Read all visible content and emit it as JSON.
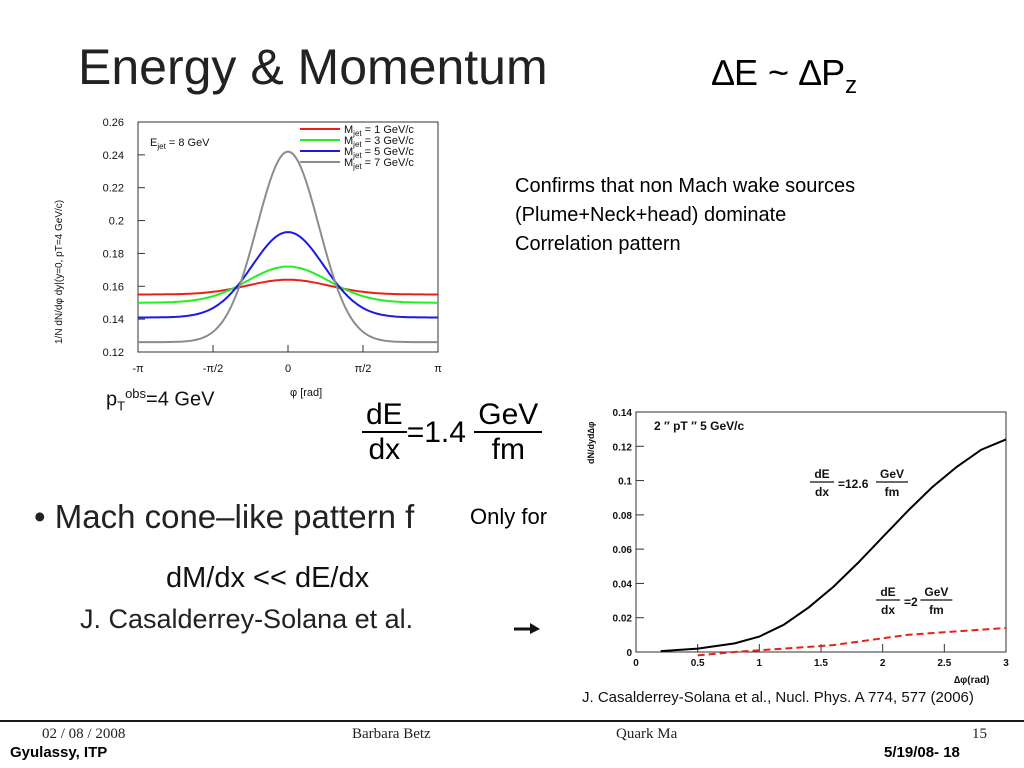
{
  "slide": {
    "title": "Energy & Momentum",
    "relation": {
      "delta1": "∆E ~ ∆P",
      "sub": "z"
    },
    "confirm_lines": [
      "Confirms that non Mach wake sources",
      "(Plume+Neck+head) dominate",
      "Correlation pattern"
    ],
    "pt_obs": {
      "p": "p",
      "sub": "T",
      "sup": "obs",
      "rest": "=4 GeV"
    },
    "eq_main": {
      "lhs_num": "dE",
      "lhs_den": "dx",
      "mid": "=1.4",
      "rhs_num": "GeV",
      "rhs_den": "fm"
    },
    "bullet": "•  Mach cone–like pattern f",
    "only_for": "Only for",
    "dmdx": "dM/dx << dE/dx",
    "author_line": "J. Casalderrey-Solana et al.",
    "reference": "J. Casalderrey-Solana et al., Nucl. Phys. A 774, 577 (2006)"
  },
  "footer": {
    "date": "02 / 08 / 2008",
    "author": "Barbara Betz",
    "conference": "Quark Ma",
    "page": "15",
    "left2": "Gyulassy, ITP",
    "right2": "5/19/08-   18"
  },
  "colors": {
    "red": "#e8201a",
    "green": "#22ee22",
    "blue": "#1a1ae6",
    "gray": "#8c8c8c"
  },
  "chart_data": [
    {
      "type": "line",
      "title": "",
      "xlabel": "φ [rad]",
      "ylabel": "1/N dN/dφ dy|(y=0, pT=4 GeV/c)",
      "annotation": "E_jet = 8 GeV",
      "annotation_parts": {
        "base": "E",
        "sub": "jet",
        "rest": " = 8 GeV"
      },
      "xlim": [
        -3.14159,
        3.14159
      ],
      "ylim": [
        0.12,
        0.26
      ],
      "x_ticks": [
        -3.14159,
        -1.5708,
        0,
        1.5708,
        3.14159
      ],
      "x_tick_labels": [
        "-π",
        "-π/2",
        "0",
        "π/2",
        "π"
      ],
      "y_ticks": [
        0.12,
        0.14,
        0.16,
        0.18,
        0.2,
        0.22,
        0.24,
        0.26
      ],
      "y_tick_labels": [
        "0.12",
        "0.14",
        "0.16",
        "0.18",
        "0.2",
        "0.22",
        "0.24",
        "0.26"
      ],
      "legend_position": "top-right",
      "series": [
        {
          "name": "M_jet = 1 GeV/c",
          "label_parts": {
            "base": "M",
            "sub": "jet",
            "rest": " = 1 GeV/c"
          },
          "color": "#e8201a",
          "peak": 0.164,
          "base": 0.155,
          "width": 0.85
        },
        {
          "name": "M_jet = 3 GeV/c",
          "label_parts": {
            "base": "M",
            "sub": "jet",
            "rest": " = 3 GeV/c"
          },
          "color": "#22ee22",
          "peak": 0.172,
          "base": 0.15,
          "width": 0.85
        },
        {
          "name": "M_jet = 5 GeV/c",
          "label_parts": {
            "base": "M",
            "sub": "jet",
            "rest": " = 5 GeV/c"
          },
          "color": "#1a1ae6",
          "peak": 0.193,
          "base": 0.141,
          "width": 0.75
        },
        {
          "name": "M_jet = 7 GeV/c",
          "label_parts": {
            "base": "M",
            "sub": "jet",
            "rest": " = 7 GeV/c"
          },
          "color": "#8c8c8c",
          "peak": 0.242,
          "base": 0.126,
          "width": 0.65
        }
      ]
    },
    {
      "type": "line",
      "title": "2 ″ pT ″ 5 GeV/c",
      "xlabel": "∆φ(rad)",
      "ylabel": "dN/dyd∆φ",
      "xlim": [
        0,
        3
      ],
      "ylim": [
        0,
        0.14
      ],
      "x_ticks": [
        0,
        0.5,
        1,
        1.5,
        2,
        2.5,
        3
      ],
      "x_tick_labels": [
        "0",
        "0.5",
        "1",
        "1.5",
        "2",
        "2.5",
        "3"
      ],
      "y_ticks": [
        0,
        0.02,
        0.04,
        0.06,
        0.08,
        0.1,
        0.12,
        0.14
      ],
      "y_tick_labels": [
        "0",
        "0.02",
        "0.04",
        "0.06",
        "0.08",
        "0.1",
        "0.12",
        "0.14"
      ],
      "series": [
        {
          "name": "dE/dx = 12.6 GeV/fm",
          "label": {
            "num": "dE",
            "den": "dx",
            "mid": "=12.6",
            "unum": "GeV",
            "uden": "fm"
          },
          "color": "#000000",
          "dash": false,
          "x": [
            0.2,
            0.5,
            0.8,
            1.0,
            1.2,
            1.4,
            1.6,
            1.8,
            2.0,
            2.2,
            2.4,
            2.6,
            2.8,
            3.0
          ],
          "y": [
            0.0005,
            0.002,
            0.005,
            0.009,
            0.016,
            0.026,
            0.038,
            0.052,
            0.067,
            0.082,
            0.096,
            0.108,
            0.118,
            0.124
          ]
        },
        {
          "name": "dE/dx = 2 GeV/fm",
          "label": {
            "num": "dE",
            "den": "dx",
            "mid": "=2",
            "unum": "GeV",
            "uden": "fm"
          },
          "color": "#e8201a",
          "dash": true,
          "x": [
            0.5,
            0.8,
            1.0,
            1.2,
            1.4,
            1.6,
            1.8,
            2.0,
            2.2,
            2.4,
            2.6,
            2.8,
            3.0
          ],
          "y": [
            -0.002,
            0.0,
            0.001,
            0.002,
            0.003,
            0.004,
            0.006,
            0.008,
            0.01,
            0.011,
            0.012,
            0.013,
            0.014
          ]
        }
      ]
    }
  ]
}
